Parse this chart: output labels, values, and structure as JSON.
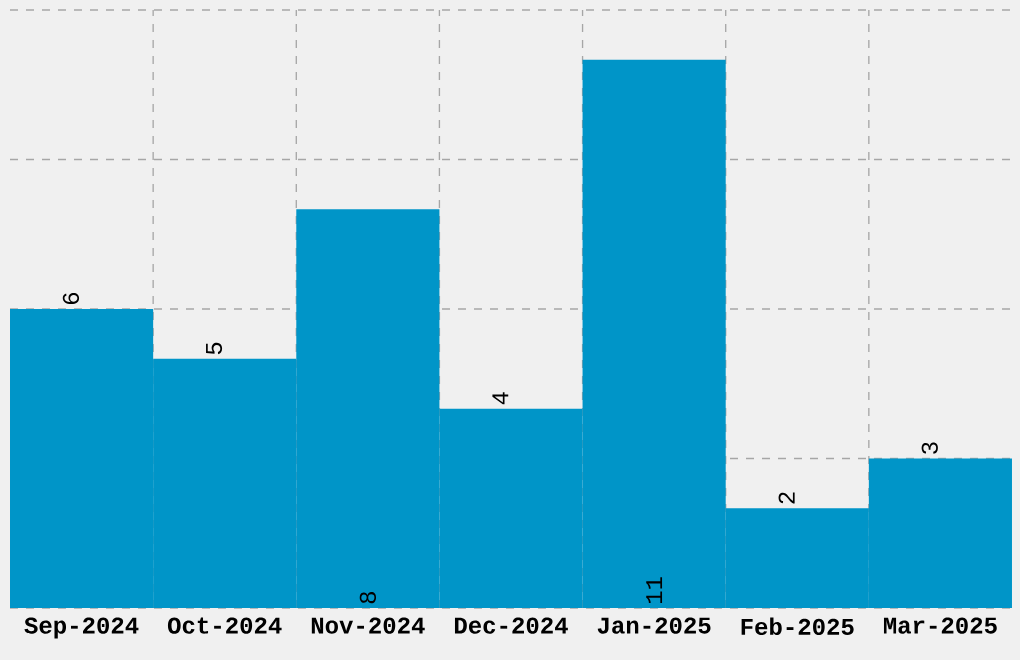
{
  "chart_data": {
    "type": "bar",
    "categories": [
      "Sep-2024",
      "Oct-2024",
      "Nov-2024",
      "Dec-2024",
      "Jan-2025",
      "Feb-2025",
      "Mar-2025"
    ],
    "values": [
      6,
      5,
      8,
      4,
      11,
      2,
      3
    ],
    "color": "#0095c8",
    "ylim": [
      0,
      12
    ],
    "yticks": [
      {
        "value": 0,
        "label": null
      },
      {
        "value": 3,
        "label": null
      },
      {
        "value": 6,
        "label": null
      },
      {
        "value": 9,
        "label": null
      },
      {
        "value": 12,
        "label": null
      }
    ],
    "tick_labels": "x",
    "grid": true,
    "data_labels": true
  }
}
